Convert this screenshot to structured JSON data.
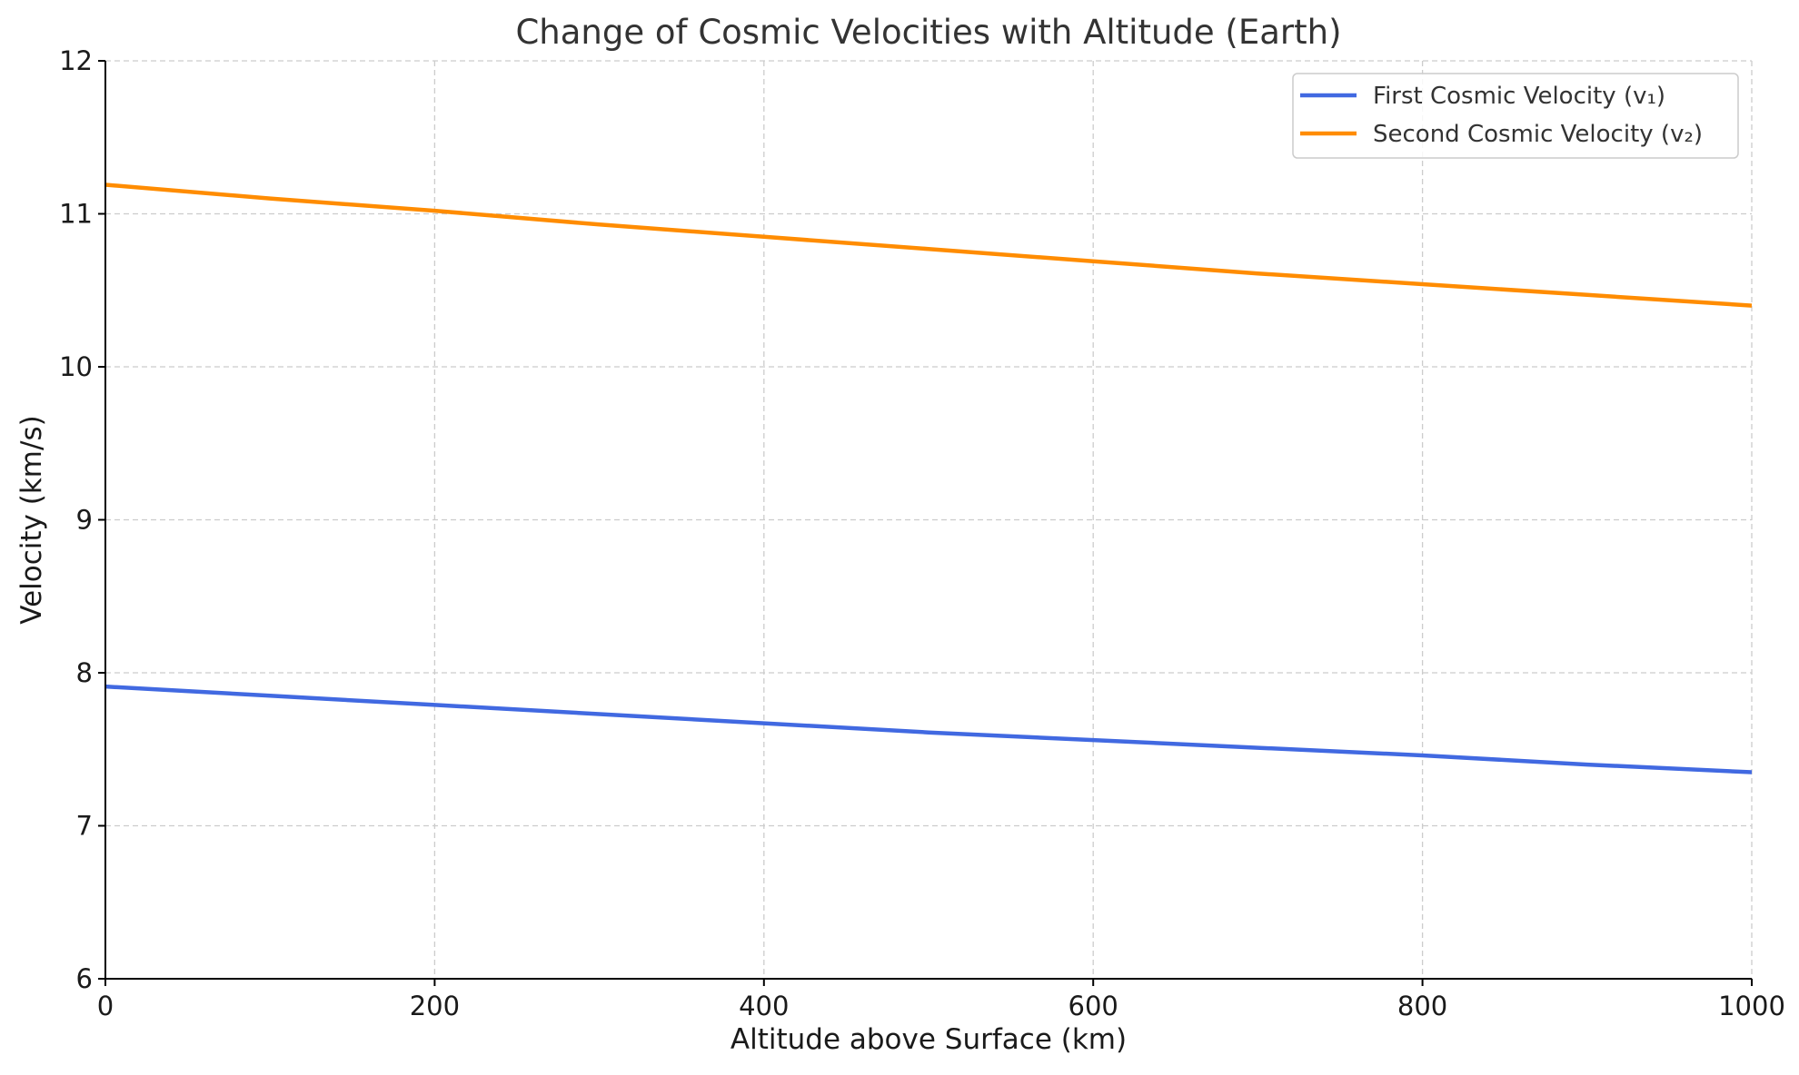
{
  "chart_data": {
    "type": "line",
    "title": "Change of Cosmic Velocities with Altitude (Earth)",
    "xlabel": "Altitude above Surface (km)",
    "ylabel": "Velocity (km/s)",
    "xlim": [
      0,
      1000
    ],
    "ylim": [
      6,
      12
    ],
    "xticks": [
      0,
      200,
      400,
      600,
      800,
      1000
    ],
    "yticks": [
      6,
      7,
      8,
      9,
      10,
      11,
      12
    ],
    "xtick_labels": [
      "0",
      "200",
      "400",
      "600",
      "800",
      "1000"
    ],
    "ytick_labels": [
      "6",
      "7",
      "8",
      "9",
      "10",
      "11",
      "12"
    ],
    "grid": true,
    "legend_position": "top-right",
    "x": [
      0,
      100,
      200,
      300,
      400,
      500,
      600,
      700,
      800,
      900,
      1000
    ],
    "series": [
      {
        "name": "First Cosmic Velocity (v₁)",
        "color": "#4169e1",
        "values": [
          7.91,
          7.85,
          7.79,
          7.73,
          7.67,
          7.61,
          7.56,
          7.51,
          7.46,
          7.4,
          7.35
        ]
      },
      {
        "name": "Second Cosmic Velocity (v₂)",
        "color": "#ff8c00",
        "values": [
          11.19,
          11.1,
          11.02,
          10.93,
          10.85,
          10.77,
          10.69,
          10.61,
          10.54,
          10.47,
          10.4
        ]
      }
    ]
  }
}
